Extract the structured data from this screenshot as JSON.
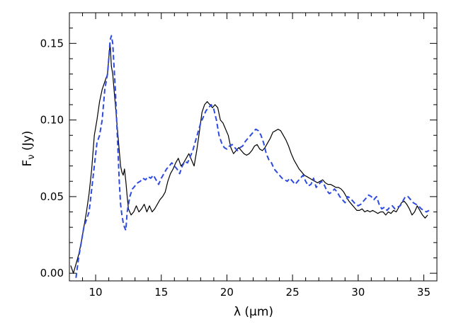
{
  "chart_data": {
    "type": "line",
    "xlabel": "λ (μm)",
    "ylabel": "F_ν (Jy)",
    "xlim": [
      8,
      36
    ],
    "ylim": [
      -0.005,
      0.17
    ],
    "x_ticks": [
      10,
      15,
      20,
      25,
      30,
      35
    ],
    "x_tick_labels": [
      "10",
      "15",
      "20",
      "25",
      "30",
      "35"
    ],
    "y_ticks": [
      0.0,
      0.05,
      0.1,
      0.15
    ],
    "y_tick_labels": [
      "0.00",
      "0.05",
      "0.10",
      "0.15"
    ],
    "grid": false,
    "series": [
      {
        "style": "solid",
        "color": "#000000",
        "x": [
          8.1,
          8.3,
          8.5,
          8.7,
          8.9,
          9.1,
          9.3,
          9.5,
          9.7,
          9.9,
          10.1,
          10.3,
          10.5,
          10.7,
          10.9,
          11.0,
          11.1,
          11.2,
          11.3,
          11.4,
          11.5,
          11.6,
          11.7,
          11.8,
          11.9,
          12.0,
          12.1,
          12.2,
          12.3,
          12.4,
          12.5,
          12.7,
          12.9,
          13.1,
          13.3,
          13.5,
          13.7,
          13.9,
          14.1,
          14.3,
          14.5,
          14.7,
          14.9,
          15.1,
          15.3,
          15.5,
          15.7,
          15.9,
          16.1,
          16.3,
          16.5,
          16.7,
          16.9,
          17.1,
          17.3,
          17.5,
          17.7,
          17.9,
          18.1,
          18.3,
          18.5,
          18.7,
          18.9,
          19.1,
          19.3,
          19.5,
          19.7,
          19.9,
          20.1,
          20.3,
          20.5,
          20.7,
          20.9,
          21.1,
          21.3,
          21.5,
          21.7,
          21.9,
          22.1,
          22.3,
          22.5,
          22.7,
          22.9,
          23.1,
          23.3,
          23.5,
          23.7,
          23.9,
          24.1,
          24.3,
          24.5,
          24.7,
          24.9,
          25.1,
          25.3,
          25.5,
          25.7,
          25.9,
          26.1,
          26.3,
          26.5,
          26.7,
          26.9,
          27.1,
          27.3,
          27.5,
          27.7,
          27.9,
          28.1,
          28.3,
          28.5,
          28.7,
          28.9,
          29.1,
          29.3,
          29.5,
          29.7,
          29.9,
          30.1,
          30.3,
          30.5,
          30.7,
          30.9,
          31.1,
          31.3,
          31.5,
          31.7,
          31.9,
          32.1,
          32.3,
          32.5,
          32.7,
          32.9,
          33.1,
          33.3,
          33.5,
          33.7,
          33.9,
          34.1,
          34.3,
          34.5,
          34.7,
          34.9,
          35.1,
          35.3
        ],
        "y": [
          0.005,
          0.0,
          0.006,
          0.012,
          0.02,
          0.03,
          0.04,
          0.052,
          0.068,
          0.09,
          0.1,
          0.112,
          0.12,
          0.125,
          0.13,
          0.14,
          0.15,
          0.135,
          0.13,
          0.12,
          0.11,
          0.1,
          0.09,
          0.08,
          0.07,
          0.066,
          0.064,
          0.068,
          0.06,
          0.05,
          0.042,
          0.038,
          0.04,
          0.044,
          0.04,
          0.042,
          0.045,
          0.04,
          0.044,
          0.04,
          0.042,
          0.045,
          0.048,
          0.05,
          0.053,
          0.06,
          0.065,
          0.068,
          0.072,
          0.075,
          0.07,
          0.072,
          0.075,
          0.078,
          0.074,
          0.07,
          0.08,
          0.092,
          0.105,
          0.11,
          0.112,
          0.11,
          0.108,
          0.11,
          0.108,
          0.1,
          0.098,
          0.094,
          0.09,
          0.082,
          0.078,
          0.08,
          0.082,
          0.08,
          0.078,
          0.077,
          0.078,
          0.08,
          0.083,
          0.084,
          0.081,
          0.08,
          0.082,
          0.085,
          0.088,
          0.092,
          0.093,
          0.094,
          0.093,
          0.09,
          0.087,
          0.083,
          0.078,
          0.074,
          0.071,
          0.068,
          0.066,
          0.064,
          0.063,
          0.062,
          0.061,
          0.06,
          0.059,
          0.06,
          0.061,
          0.059,
          0.058,
          0.058,
          0.057,
          0.056,
          0.056,
          0.055,
          0.053,
          0.05,
          0.047,
          0.045,
          0.043,
          0.041,
          0.041,
          0.042,
          0.04,
          0.041,
          0.04,
          0.041,
          0.04,
          0.039,
          0.04,
          0.04,
          0.038,
          0.04,
          0.039,
          0.041,
          0.04,
          0.043,
          0.046,
          0.047,
          0.045,
          0.042,
          0.038,
          0.04,
          0.044,
          0.041,
          0.038,
          0.036,
          0.038
        ]
      },
      {
        "style": "dashed",
        "color": "#2d4be0",
        "x": [
          8.5,
          8.7,
          8.9,
          9.1,
          9.3,
          9.5,
          9.7,
          9.9,
          10.1,
          10.3,
          10.5,
          10.7,
          10.9,
          11.0,
          11.1,
          11.2,
          11.3,
          11.4,
          11.5,
          11.6,
          11.7,
          11.8,
          11.9,
          12.0,
          12.1,
          12.2,
          12.3,
          12.4,
          12.6,
          12.8,
          13.0,
          13.2,
          13.4,
          13.6,
          13.8,
          14.0,
          14.2,
          14.4,
          14.6,
          14.8,
          15.0,
          15.2,
          15.4,
          15.6,
          15.8,
          16.0,
          16.2,
          16.4,
          16.6,
          16.8,
          17.0,
          17.2,
          17.4,
          17.6,
          17.8,
          18.0,
          18.2,
          18.4,
          18.6,
          18.8,
          19.0,
          19.2,
          19.4,
          19.6,
          19.8,
          20.0,
          20.2,
          20.4,
          20.6,
          20.8,
          21.0,
          21.2,
          21.4,
          21.6,
          21.8,
          22.0,
          22.2,
          22.4,
          22.6,
          22.8,
          23.0,
          23.2,
          23.4,
          23.6,
          23.8,
          24.0,
          24.2,
          24.4,
          24.6,
          24.8,
          25.0,
          25.2,
          25.4,
          25.6,
          25.8,
          26.0,
          26.2,
          26.4,
          26.6,
          26.8,
          27.0,
          27.2,
          27.4,
          27.6,
          27.8,
          28.0,
          28.2,
          28.4,
          28.6,
          28.8,
          29.0,
          29.2,
          29.4,
          29.6,
          29.8,
          30.0,
          30.2,
          30.4,
          30.6,
          30.8,
          31.0,
          31.2,
          31.4,
          31.6,
          31.8,
          32.0,
          32.2,
          32.4,
          32.6,
          32.8,
          33.0,
          33.2,
          33.4,
          33.6,
          33.8,
          34.0,
          34.2,
          34.4,
          34.6,
          34.8,
          35.0,
          35.2,
          35.4
        ],
        "y": [
          -0.003,
          0.01,
          0.02,
          0.03,
          0.035,
          0.04,
          0.055,
          0.07,
          0.085,
          0.09,
          0.1,
          0.12,
          0.13,
          0.14,
          0.152,
          0.155,
          0.15,
          0.135,
          0.12,
          0.1,
          0.08,
          0.06,
          0.045,
          0.038,
          0.033,
          0.03,
          0.028,
          0.04,
          0.05,
          0.055,
          0.057,
          0.059,
          0.06,
          0.062,
          0.061,
          0.063,
          0.062,
          0.064,
          0.061,
          0.058,
          0.062,
          0.065,
          0.068,
          0.07,
          0.072,
          0.07,
          0.068,
          0.065,
          0.07,
          0.073,
          0.072,
          0.076,
          0.08,
          0.086,
          0.092,
          0.098,
          0.102,
          0.106,
          0.108,
          0.11,
          0.107,
          0.1,
          0.09,
          0.085,
          0.082,
          0.081,
          0.083,
          0.084,
          0.082,
          0.08,
          0.082,
          0.083,
          0.086,
          0.088,
          0.09,
          0.092,
          0.094,
          0.093,
          0.09,
          0.085,
          0.078,
          0.074,
          0.072,
          0.068,
          0.066,
          0.064,
          0.062,
          0.061,
          0.06,
          0.062,
          0.06,
          0.058,
          0.06,
          0.062,
          0.064,
          0.06,
          0.057,
          0.058,
          0.062,
          0.056,
          0.058,
          0.06,
          0.058,
          0.054,
          0.052,
          0.053,
          0.055,
          0.053,
          0.05,
          0.048,
          0.046,
          0.05,
          0.049,
          0.047,
          0.045,
          0.044,
          0.045,
          0.047,
          0.049,
          0.051,
          0.05,
          0.048,
          0.05,
          0.045,
          0.042,
          0.043,
          0.041,
          0.043,
          0.044,
          0.042,
          0.043,
          0.044,
          0.047,
          0.05,
          0.05,
          0.048,
          0.046,
          0.045,
          0.044,
          0.042,
          0.041,
          0.04,
          0.041
        ]
      }
    ]
  }
}
